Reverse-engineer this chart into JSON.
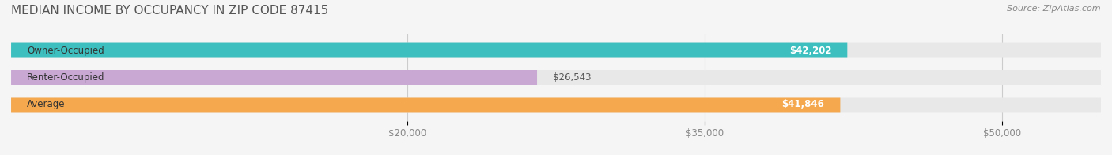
{
  "title": "MEDIAN INCOME BY OCCUPANCY IN ZIP CODE 87415",
  "source": "Source: ZipAtlas.com",
  "categories": [
    "Owner-Occupied",
    "Renter-Occupied",
    "Average"
  ],
  "values": [
    42202,
    26543,
    41846
  ],
  "bar_colors": [
    "#3dbfbf",
    "#c9a8d4",
    "#f5a84e"
  ],
  "label_colors": [
    "#ffffff",
    "#555555",
    "#ffffff"
  ],
  "value_labels": [
    "$42,202",
    "$26,543",
    "$41,846"
  ],
  "xlim": [
    0,
    55000
  ],
  "xticks": [
    20000,
    35000,
    50000
  ],
  "xtick_labels": [
    "$20,000",
    "$35,000",
    "$50,000"
  ],
  "bar_height": 0.55,
  "background_color": "#f5f5f5",
  "bar_bg_color": "#e8e8e8",
  "title_fontsize": 11,
  "source_fontsize": 8,
  "label_fontsize": 8.5,
  "value_fontsize": 8.5,
  "tick_fontsize": 8.5
}
